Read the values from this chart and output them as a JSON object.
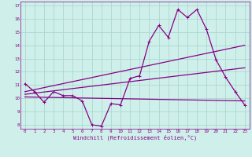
{
  "title": "",
  "xlabel": "Windchill (Refroidissement éolien,°C)",
  "ylabel": "",
  "bg_color": "#cff0ea",
  "grid_color": "#aad8d0",
  "line_color": "#880088",
  "xlim": [
    -0.5,
    23.5
  ],
  "ylim": [
    7.7,
    17.3
  ],
  "yticks": [
    8,
    9,
    10,
    11,
    12,
    13,
    14,
    15,
    16,
    17
  ],
  "xticks": [
    0,
    1,
    2,
    3,
    4,
    5,
    6,
    7,
    8,
    9,
    10,
    11,
    12,
    13,
    14,
    15,
    16,
    17,
    18,
    19,
    20,
    21,
    22,
    23
  ],
  "line1_x": [
    0,
    1,
    2,
    3,
    4,
    5,
    6,
    7,
    8,
    9,
    10,
    11,
    12,
    13,
    14,
    15,
    16,
    17,
    18,
    19,
    20,
    21,
    22,
    23
  ],
  "line1_y": [
    11.1,
    10.5,
    9.7,
    10.5,
    10.2,
    10.2,
    9.8,
    8.0,
    7.9,
    9.6,
    9.5,
    11.5,
    11.7,
    14.3,
    15.5,
    14.6,
    16.7,
    16.1,
    16.7,
    15.2,
    12.9,
    11.6,
    10.5,
    9.5
  ],
  "line2_x": [
    0,
    23
  ],
  "line2_y": [
    10.5,
    14.0
  ],
  "line3_x": [
    0,
    23
  ],
  "line3_y": [
    10.3,
    12.3
  ],
  "line4_x": [
    0,
    23
  ],
  "line4_y": [
    10.1,
    9.8
  ]
}
